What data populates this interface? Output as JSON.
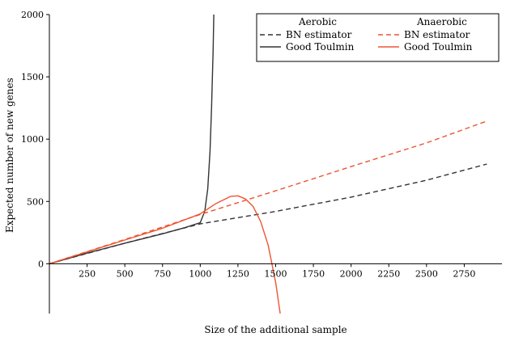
{
  "chart_data": {
    "type": "line",
    "xlabel": "Size of the additional sample",
    "ylabel": "Expected number of new genes",
    "xlim": [
      0,
      3000
    ],
    "ylim": [
      -400,
      2000
    ],
    "x_ticks": [
      250,
      500,
      750,
      1000,
      1250,
      1500,
      1750,
      2000,
      2250,
      2500,
      2750
    ],
    "y_ticks": [
      0,
      500,
      1000,
      1500,
      2000
    ],
    "grid": false,
    "legend": {
      "placement": "top-right",
      "groups": [
        {
          "header": "Aerobic",
          "entries": [
            {
              "label": "BN estimator",
              "color": "#333333",
              "dash": "dashed"
            },
            {
              "label": "Good Toulmin",
              "color": "#333333",
              "dash": "solid"
            }
          ]
        },
        {
          "header": "Anaerobic",
          "entries": [
            {
              "label": "BN estimator",
              "color": "#ee5533",
              "dash": "dashed"
            },
            {
              "label": "Good Toulmin",
              "color": "#ee5533",
              "dash": "solid"
            }
          ]
        }
      ]
    },
    "series": [
      {
        "color": "#333333",
        "dash": "dashed",
        "x": [
          0,
          500,
          1000,
          1500,
          2000,
          2500,
          2900
        ],
        "y": [
          0,
          165,
          320,
          420,
          535,
          670,
          800
        ]
      },
      {
        "color": "#333333",
        "dash": "solid",
        "x": [
          0,
          250,
          500,
          750,
          900,
          1000,
          1030,
          1050,
          1065,
          1075,
          1085,
          1090
        ],
        "y": [
          0,
          85,
          165,
          240,
          290,
          330,
          420,
          600,
          900,
          1250,
          1700,
          2000
        ]
      },
      {
        "color": "#ee5533",
        "dash": "dashed",
        "x": [
          0,
          500,
          1000,
          1500,
          2000,
          2500,
          2900
        ],
        "y": [
          0,
          195,
          395,
          585,
          780,
          970,
          1145
        ]
      },
      {
        "color": "#ee5533",
        "dash": "solid",
        "x": [
          0,
          250,
          500,
          750,
          1000,
          1100,
          1200,
          1250,
          1300,
          1350,
          1400,
          1450,
          1500,
          1530
        ],
        "y": [
          0,
          95,
          190,
          285,
          400,
          480,
          540,
          545,
          520,
          460,
          340,
          150,
          -150,
          -400
        ]
      }
    ]
  }
}
